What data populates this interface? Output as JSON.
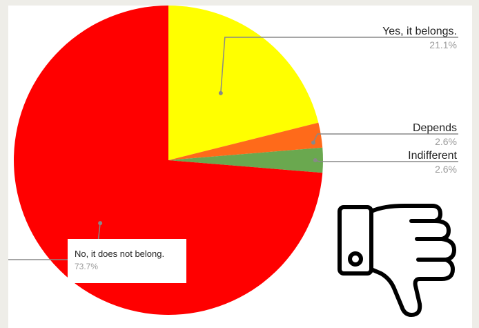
{
  "chart_data": {
    "type": "pie",
    "categories": [
      "Yes, it belongs.",
      "Depends",
      "Indifferent",
      "No, it does not belong."
    ],
    "values": [
      21.1,
      2.6,
      2.6,
      73.7
    ],
    "value_labels": [
      "21.1%",
      "2.6%",
      "2.6%",
      "73.7%"
    ],
    "colors": [
      "#ffff00",
      "#ff6a1a",
      "#6aa84f",
      "#ff0000"
    ],
    "start_angle_deg": 0,
    "direction": "clockwise",
    "labels": "outside-with-leader-lines"
  },
  "decoration": {
    "icon": "thumbs-down-icon",
    "color": "#000000"
  }
}
